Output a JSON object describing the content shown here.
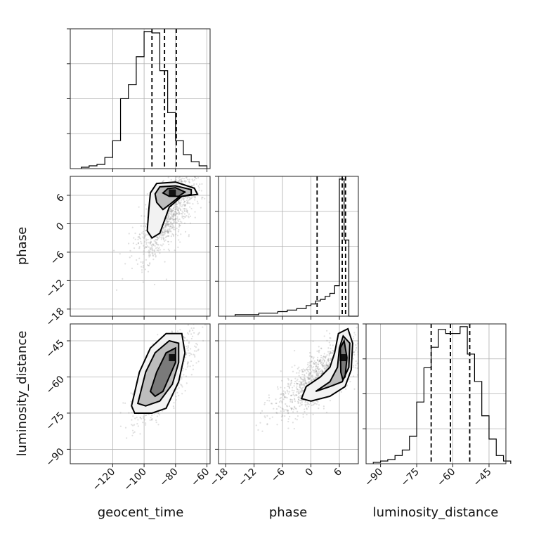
{
  "chart_data": {
    "type": "corner",
    "parameters": [
      "geocent_time",
      "phase",
      "luminosity_distance"
    ],
    "xlabels": [
      "geocent_time",
      "phase",
      "luminosity_distance"
    ],
    "ylabels": [
      "",
      "phase",
      "luminosity_distance"
    ],
    "grid": true,
    "axes": {
      "geocent_time": {
        "range": [
          -147,
          -58
        ],
        "ticks": [
          -120,
          -100,
          -80,
          -60
        ],
        "tick_labels": [
          "−120",
          "−100",
          "−80",
          "−60"
        ]
      },
      "phase": {
        "range": [
          -19.5,
          10
        ],
        "ticks": [
          -18,
          -12,
          -6,
          0,
          6
        ],
        "tick_labels": [
          "−18",
          "−12",
          "−6",
          "0",
          "6"
        ]
      },
      "luminosity_distance": {
        "range": [
          -96,
          -38
        ],
        "ticks": [
          -90,
          -75,
          -60,
          -45
        ],
        "tick_labels": [
          "−90",
          "−75",
          "−60",
          "−45"
        ]
      }
    },
    "histograms": [
      {
        "parameter": "geocent_time",
        "bin_edges": [
          -140,
          -135,
          -130,
          -125,
          -120,
          -115,
          -110,
          -105,
          -100,
          -95,
          -90,
          -85,
          -80,
          -75,
          -70,
          -65,
          -60
        ],
        "counts": [
          1,
          2,
          3,
          8,
          20,
          50,
          60,
          80,
          98,
          97,
          70,
          40,
          20,
          10,
          5,
          2
        ],
        "quantiles": [
          -95,
          -87,
          -79.5
        ]
      },
      {
        "parameter": "phase",
        "bin_edges": [
          -16,
          -15,
          -14,
          -13,
          -12,
          -11,
          -10,
          -9,
          -8,
          -7,
          -6,
          -5,
          -4,
          -3,
          -2,
          -1,
          0,
          1,
          2,
          3,
          4,
          5,
          6,
          7,
          8,
          9,
          10
        ],
        "counts": [
          1,
          1,
          1,
          1,
          1,
          2,
          2,
          2,
          2,
          3,
          3,
          4,
          4,
          5,
          5,
          7,
          8,
          10,
          11,
          13,
          15,
          20,
          90,
          50,
          0,
          0
        ],
        "quantiles": [
          1.3,
          6.6,
          7.3
        ]
      },
      {
        "parameter": "luminosity_distance",
        "bin_edges": [
          -93,
          -90,
          -87,
          -84,
          -81,
          -78,
          -75,
          -72,
          -69,
          -66,
          -63,
          -60,
          -57,
          -54,
          -51,
          -48,
          -45,
          -42,
          -39,
          -36
        ],
        "counts": [
          1,
          2,
          3,
          6,
          10,
          20,
          45,
          70,
          85,
          98,
          95,
          95,
          100,
          80,
          60,
          35,
          18,
          6,
          2
        ],
        "quantiles": [
          -69,
          -61,
          -53
        ]
      }
    ],
    "density_panels": [
      {
        "x": "geocent_time",
        "y": "phase",
        "contours": [
          [
            [
              -96,
              6.5
            ],
            [
              -92,
              8.5
            ],
            [
              -80,
              8.8
            ],
            [
              -68,
              7.5
            ],
            [
              -66,
              6.2
            ],
            [
              -76,
              5.8
            ],
            [
              -84,
              3.5
            ],
            [
              -90,
              -2
            ],
            [
              -95,
              -3
            ],
            [
              -98,
              -1.5
            ],
            [
              -97,
              3
            ]
          ],
          [
            [
              -93,
              6.3
            ],
            [
              -90,
              7.8
            ],
            [
              -80,
              8.0
            ],
            [
              -70,
              7.2
            ],
            [
              -70,
              6.2
            ],
            [
              -78,
              5.6
            ],
            [
              -84,
              4.0
            ],
            [
              -88,
              3.0
            ],
            [
              -92,
              4.5
            ]
          ],
          [
            [
              -88,
              6.5
            ],
            [
              -85,
              7.4
            ],
            [
              -80,
              7.6
            ],
            [
              -74,
              6.7
            ],
            [
              -78,
              5.8
            ],
            [
              -84,
              5.8
            ]
          ]
        ],
        "scatter_center": [
          -85,
          2
        ],
        "scatter_spread": [
          10,
          5
        ],
        "density_peak": [
          -82,
          6.5
        ]
      },
      {
        "x": "geocent_time",
        "y": "luminosity_distance",
        "contours": [
          [
            [
              -108,
              -72
            ],
            [
              -103,
              -58
            ],
            [
              -96,
              -48
            ],
            [
              -86,
              -42
            ],
            [
              -76,
              -42
            ],
            [
              -74,
              -50
            ],
            [
              -78,
              -62
            ],
            [
              -86,
              -73
            ],
            [
              -95,
              -75
            ],
            [
              -106,
              -75
            ]
          ],
          [
            [
              -104,
              -71
            ],
            [
              -99,
              -58
            ],
            [
              -93,
              -50
            ],
            [
              -84,
              -45
            ],
            [
              -78,
              -46
            ],
            [
              -78,
              -54
            ],
            [
              -82,
              -63
            ],
            [
              -90,
              -70
            ],
            [
              -99,
              -72
            ]
          ],
          [
            [
              -96,
              -66
            ],
            [
              -92,
              -58
            ],
            [
              -86,
              -50
            ],
            [
              -80,
              -48
            ],
            [
              -80,
              -54
            ],
            [
              -84,
              -60
            ],
            [
              -88,
              -66
            ],
            [
              -93,
              -68
            ]
          ]
        ],
        "scatter_center": [
          -87,
          -60
        ],
        "scatter_spread": [
          9,
          9
        ],
        "density_peak": [
          -82,
          -52
        ]
      },
      {
        "x": "phase",
        "y": "luminosity_distance",
        "contours": [
          [
            [
              -2,
              -69
            ],
            [
              -1,
              -64
            ],
            [
              2,
              -60
            ],
            [
              4,
              -56
            ],
            [
              5,
              -50
            ],
            [
              5.8,
              -42
            ],
            [
              7.8,
              -40
            ],
            [
              8.8,
              -46
            ],
            [
              8.5,
              -57
            ],
            [
              7.2,
              -64
            ],
            [
              4,
              -68
            ],
            [
              0,
              -70
            ]
          ],
          [
            [
              1,
              -66
            ],
            [
              4,
              -62
            ],
            [
              5.6,
              -56
            ],
            [
              6,
              -48
            ],
            [
              6.8,
              -43
            ],
            [
              8.2,
              -46
            ],
            [
              8,
              -56
            ],
            [
              6.6,
              -62
            ],
            [
              4,
              -64
            ]
          ],
          [
            [
              6.3,
              -58
            ],
            [
              6.2,
              -48
            ],
            [
              7.0,
              -45
            ],
            [
              7.6,
              -52
            ],
            [
              7.2,
              -60
            ],
            [
              6.7,
              -61
            ]
          ]
        ],
        "scatter_center": [
          2,
          -60
        ],
        "scatter_spread": [
          4.5,
          8
        ],
        "density_peak": [
          6.8,
          -52
        ]
      }
    ]
  }
}
